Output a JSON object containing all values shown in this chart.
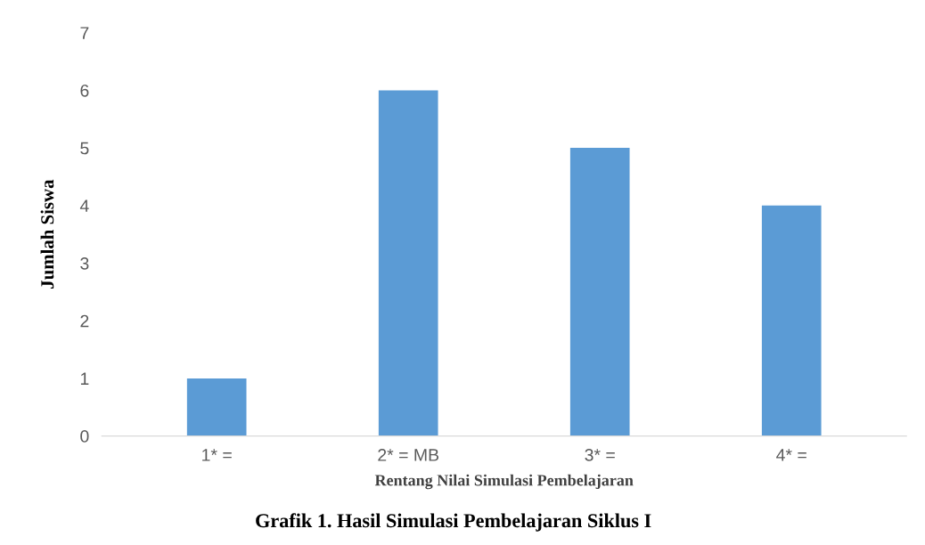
{
  "chart_data": {
    "type": "bar",
    "xlabel": "Rentang Nilai Simulasi Pembelajaran",
    "ylabel": "Jumlah Siswa",
    "categories": [
      "1* =",
      "2* = MB",
      "3* =",
      "4* ="
    ],
    "values": [
      1,
      6,
      5,
      4
    ],
    "color": "#5b9bd5",
    "ylim": [
      0,
      7
    ],
    "yticks": [
      0,
      1,
      2,
      3,
      4,
      5,
      6,
      7
    ],
    "grid": false,
    "annotations": [
      "Grafik 1. Hasil Simulasi Pembelajaran Siklus I"
    ]
  }
}
